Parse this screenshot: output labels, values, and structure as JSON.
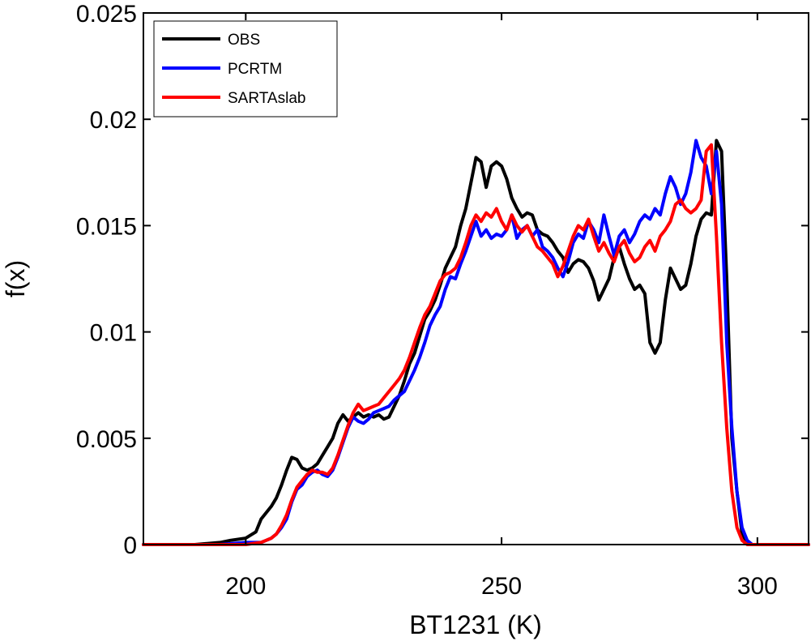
{
  "chart_data": {
    "type": "line",
    "title": "",
    "xlabel": "BT1231 (K)",
    "ylabel": "f(x)",
    "xlim": [
      180,
      310
    ],
    "ylim": [
      0,
      0.025
    ],
    "x_ticks": [
      200,
      250,
      300
    ],
    "x_tick_labels": [
      "200",
      "250",
      "300"
    ],
    "y_ticks": [
      0,
      0.005,
      0.01,
      0.015,
      0.02,
      0.025
    ],
    "y_tick_labels": [
      "0",
      "0.005",
      "0.01",
      "0.015",
      "0.02",
      "0.025"
    ],
    "grid": false,
    "legend_position": "top-left",
    "series": [
      {
        "name": "OBS",
        "color": "#000000",
        "x": [
          180,
          190,
          195,
          197,
          200,
          202,
          203,
          205,
          206,
          207,
          208,
          209,
          210,
          211,
          212,
          213,
          214,
          215,
          216,
          217,
          218,
          219,
          220,
          221,
          222,
          223,
          224,
          225,
          226,
          227,
          228,
          229,
          230,
          231,
          232,
          233,
          234,
          235,
          236,
          237,
          238,
          239,
          240,
          241,
          242,
          243,
          244,
          245,
          246,
          247,
          248,
          249,
          250,
          251,
          252,
          253,
          254,
          255,
          256,
          257,
          258,
          259,
          260,
          261,
          262,
          263,
          264,
          265,
          266,
          267,
          268,
          269,
          270,
          271,
          272,
          273,
          274,
          275,
          276,
          277,
          278,
          279,
          280,
          281,
          282,
          283,
          284,
          285,
          286,
          287,
          288,
          289,
          290,
          291,
          292,
          293,
          294,
          295,
          296,
          297,
          298,
          299,
          300,
          301,
          310
        ],
        "y": [
          0,
          0,
          0.0001,
          0.0002,
          0.0003,
          0.0006,
          0.0012,
          0.0018,
          0.0022,
          0.0028,
          0.0035,
          0.0041,
          0.004,
          0.0036,
          0.0035,
          0.0036,
          0.0038,
          0.0042,
          0.0046,
          0.005,
          0.0057,
          0.0061,
          0.0058,
          0.006,
          0.0062,
          0.006,
          0.0061,
          0.006,
          0.0061,
          0.0059,
          0.006,
          0.0065,
          0.007,
          0.0077,
          0.0085,
          0.009,
          0.0098,
          0.0106,
          0.011,
          0.0115,
          0.0122,
          0.013,
          0.0135,
          0.014,
          0.015,
          0.0158,
          0.017,
          0.0182,
          0.018,
          0.0168,
          0.0178,
          0.018,
          0.0178,
          0.0172,
          0.0163,
          0.0158,
          0.0154,
          0.0156,
          0.0155,
          0.0148,
          0.0146,
          0.0145,
          0.0142,
          0.0138,
          0.0135,
          0.0128,
          0.0132,
          0.0134,
          0.0133,
          0.013,
          0.0124,
          0.0115,
          0.012,
          0.0125,
          0.0135,
          0.014,
          0.0132,
          0.0125,
          0.012,
          0.0122,
          0.0118,
          0.0095,
          0.009,
          0.0095,
          0.0115,
          0.013,
          0.0125,
          0.012,
          0.0122,
          0.0132,
          0.0145,
          0.0153,
          0.0156,
          0.0155,
          0.019,
          0.0185,
          0.0125,
          0.005,
          0.0025,
          0.0005,
          0.0001,
          0,
          0,
          0,
          0
        ]
      },
      {
        "name": "PCRTM",
        "color": "#0000ff",
        "x": [
          180,
          195,
          200,
          203,
          204,
          205,
          206,
          207,
          208,
          209,
          210,
          211,
          212,
          213,
          214,
          215,
          216,
          217,
          218,
          219,
          220,
          221,
          222,
          223,
          224,
          225,
          226,
          227,
          228,
          229,
          230,
          231,
          232,
          233,
          234,
          235,
          236,
          237,
          238,
          239,
          240,
          241,
          242,
          243,
          244,
          245,
          246,
          247,
          248,
          249,
          250,
          251,
          252,
          253,
          254,
          255,
          256,
          257,
          258,
          259,
          260,
          261,
          262,
          263,
          264,
          265,
          266,
          267,
          268,
          269,
          270,
          271,
          272,
          273,
          274,
          275,
          276,
          277,
          278,
          279,
          280,
          281,
          282,
          283,
          284,
          285,
          286,
          287,
          288,
          289,
          290,
          291,
          292,
          293,
          294,
          295,
          296,
          297,
          298,
          299,
          300,
          310
        ],
        "y": [
          0,
          0,
          0.0001,
          0.0001,
          0.0002,
          0.0003,
          0.0005,
          0.0008,
          0.0012,
          0.002,
          0.0026,
          0.0028,
          0.0032,
          0.0034,
          0.0035,
          0.0033,
          0.0032,
          0.0035,
          0.0041,
          0.0048,
          0.0055,
          0.006,
          0.0058,
          0.0057,
          0.0059,
          0.0062,
          0.0063,
          0.0064,
          0.0065,
          0.0068,
          0.007,
          0.0072,
          0.0077,
          0.0082,
          0.0088,
          0.0095,
          0.0103,
          0.0108,
          0.0112,
          0.012,
          0.0126,
          0.0125,
          0.0132,
          0.0138,
          0.0145,
          0.0152,
          0.0145,
          0.0148,
          0.0144,
          0.0146,
          0.0145,
          0.0148,
          0.0155,
          0.0144,
          0.0148,
          0.015,
          0.0145,
          0.0148,
          0.014,
          0.0138,
          0.0135,
          0.013,
          0.0126,
          0.0133,
          0.0142,
          0.0146,
          0.0144,
          0.0152,
          0.0148,
          0.0142,
          0.0155,
          0.0145,
          0.0136,
          0.0145,
          0.0148,
          0.0142,
          0.0146,
          0.0152,
          0.0155,
          0.0153,
          0.0158,
          0.0155,
          0.0165,
          0.0173,
          0.0168,
          0.016,
          0.0165,
          0.0175,
          0.019,
          0.0182,
          0.0178,
          0.0165,
          0.0185,
          0.016,
          0.0095,
          0.0055,
          0.0025,
          0.0008,
          0.0002,
          0,
          0,
          0
        ]
      },
      {
        "name": "SARTAslab",
        "color": "#ff0000",
        "x": [
          180,
          200,
          203,
          205,
          206,
          207,
          208,
          209,
          210,
          211,
          212,
          213,
          214,
          215,
          216,
          217,
          218,
          219,
          220,
          221,
          222,
          223,
          224,
          225,
          226,
          227,
          228,
          229,
          230,
          231,
          232,
          233,
          234,
          235,
          236,
          237,
          238,
          239,
          240,
          241,
          242,
          243,
          244,
          245,
          246,
          247,
          248,
          249,
          250,
          251,
          252,
          253,
          254,
          255,
          256,
          257,
          258,
          259,
          260,
          261,
          262,
          263,
          264,
          265,
          266,
          267,
          268,
          269,
          270,
          271,
          272,
          273,
          274,
          275,
          276,
          277,
          278,
          279,
          280,
          281,
          282,
          283,
          284,
          285,
          286,
          287,
          288,
          289,
          290,
          291,
          292,
          293,
          294,
          295,
          296,
          297,
          298,
          299,
          300,
          310
        ],
        "y": [
          0,
          0,
          0.0001,
          0.0003,
          0.0005,
          0.0009,
          0.0014,
          0.0021,
          0.0027,
          0.003,
          0.0033,
          0.0035,
          0.0034,
          0.0034,
          0.0033,
          0.0036,
          0.0042,
          0.0049,
          0.0056,
          0.0062,
          0.0066,
          0.0063,
          0.0064,
          0.0065,
          0.0066,
          0.0069,
          0.0072,
          0.0075,
          0.0078,
          0.0082,
          0.0088,
          0.0095,
          0.0102,
          0.0108,
          0.0112,
          0.0118,
          0.0124,
          0.0127,
          0.0128,
          0.013,
          0.0135,
          0.0142,
          0.015,
          0.0155,
          0.0152,
          0.0156,
          0.0154,
          0.0158,
          0.0152,
          0.0148,
          0.0155,
          0.015,
          0.0147,
          0.015,
          0.0145,
          0.014,
          0.0138,
          0.0135,
          0.0132,
          0.0126,
          0.0131,
          0.0138,
          0.0145,
          0.015,
          0.0148,
          0.0153,
          0.0145,
          0.0138,
          0.0142,
          0.0137,
          0.0133,
          0.014,
          0.0143,
          0.0137,
          0.0133,
          0.0135,
          0.014,
          0.0143,
          0.0138,
          0.0145,
          0.0148,
          0.0152,
          0.016,
          0.0162,
          0.0158,
          0.0156,
          0.0158,
          0.0162,
          0.0185,
          0.0188,
          0.0145,
          0.0095,
          0.0055,
          0.0025,
          0.0008,
          0.0002,
          0,
          0,
          0,
          0
        ]
      }
    ]
  }
}
